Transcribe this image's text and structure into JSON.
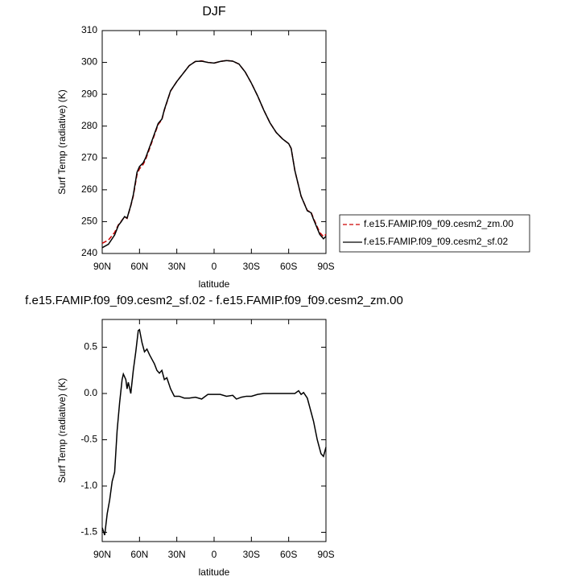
{
  "chart_data": [
    {
      "type": "line",
      "title": "DJF",
      "x_label": "latitude",
      "y_label": "Surf Temp (radiative) (K)",
      "x": [
        90,
        85,
        80,
        77,
        75,
        72,
        70,
        67,
        65,
        62,
        60,
        57,
        55,
        50,
        45,
        42,
        40,
        35,
        30,
        25,
        20,
        15,
        10,
        5,
        0,
        -5,
        -10,
        -15,
        -20,
        -25,
        -30,
        -35,
        -40,
        -45,
        -50,
        -55,
        -60,
        -62,
        -65,
        -70,
        -75,
        -78,
        -80,
        -85,
        -88,
        -90
      ],
      "series": [
        {
          "name": "f.e15.FAMIP.f09_f09.cesm2_zm.00",
          "color": "#cc0000",
          "dashed": true,
          "values": [
            243.2,
            244.2,
            246.6,
            249,
            250,
            251.5,
            251,
            255,
            258,
            264.8,
            266.6,
            268,
            269.6,
            275,
            280.5,
            282,
            285,
            291,
            294,
            296.5,
            299,
            300.3,
            300.5,
            300,
            299.8,
            300.3,
            300.6,
            300.4,
            299.5,
            297,
            293.5,
            289.5,
            285,
            281,
            278,
            276,
            274.5,
            273,
            266,
            258,
            253.5,
            253,
            251,
            246.6,
            245.3,
            246
          ]
        },
        {
          "name": "f.e15.FAMIP.f09_f09.cesm2_sf.02",
          "color": "#000000",
          "dashed": false,
          "values": [
            241.8,
            242.9,
            245.8,
            248.8,
            249.8,
            251.6,
            251.1,
            255.1,
            258.4,
            265.5,
            267.3,
            268.5,
            270.1,
            275.4,
            280.8,
            282.2,
            285.2,
            291.1,
            294,
            296.5,
            299,
            300.3,
            300.4,
            300,
            299.8,
            300.3,
            300.6,
            300.4,
            299.5,
            297,
            293.5,
            289.5,
            285,
            281,
            278,
            276,
            274.5,
            273,
            266,
            258,
            253.4,
            252.8,
            250.7,
            246,
            244.6,
            245.4
          ]
        }
      ],
      "xlim": [
        90,
        -90
      ],
      "xticks": [
        {
          "value": 90,
          "label": "90N"
        },
        {
          "value": 60,
          "label": "60N"
        },
        {
          "value": 30,
          "label": "30N"
        },
        0,
        {
          "value": -30,
          "label": "30S"
        },
        {
          "value": -60,
          "label": "60S"
        },
        {
          "value": -90,
          "label": "90S"
        }
      ],
      "ylim": [
        240,
        310
      ],
      "yticks": [
        240,
        250,
        260,
        270,
        280,
        290,
        300,
        310
      ],
      "legend": "right"
    },
    {
      "type": "line",
      "title": "f.e15.FAMIP.f09_f09.cesm2_sf.02 - f.e15.FAMIP.f09_f09.cesm2_zm.00",
      "x_label": "latitude",
      "y_label": "Surf Temp (radiative) (K)",
      "x": [
        90,
        88,
        86,
        84,
        82,
        80,
        78,
        76,
        74,
        73,
        71,
        70,
        69,
        67,
        65,
        63,
        61,
        60,
        58,
        56,
        54,
        52,
        50,
        48,
        46,
        44,
        42,
        40,
        38,
        35,
        32,
        28,
        24,
        20,
        15,
        10,
        5,
        0,
        -5,
        -10,
        -15,
        -18,
        -22,
        -26,
        -30,
        -35,
        -40,
        -50,
        -60,
        -65,
        -68,
        -70,
        -72,
        -75,
        -78,
        -80,
        -83,
        -86,
        -88,
        -90
      ],
      "values": [
        -1.45,
        -1.53,
        -1.3,
        -1.15,
        -0.95,
        -0.85,
        -0.4,
        -0.1,
        0.15,
        0.21,
        0.15,
        0.05,
        0.12,
        0.0,
        0.25,
        0.45,
        0.68,
        0.69,
        0.55,
        0.45,
        0.48,
        0.42,
        0.37,
        0.32,
        0.25,
        0.22,
        0.25,
        0.15,
        0.17,
        0.05,
        -0.03,
        -0.03,
        -0.05,
        -0.05,
        -0.04,
        -0.06,
        -0.01,
        -0.01,
        -0.01,
        -0.03,
        -0.02,
        -0.06,
        -0.04,
        -0.03,
        -0.03,
        -0.01,
        0.0,
        0.0,
        0.0,
        0.0,
        0.03,
        -0.01,
        0.01,
        -0.05,
        -0.2,
        -0.3,
        -0.5,
        -0.65,
        -0.68,
        -0.58
      ],
      "color": "#000000",
      "xlim": [
        90,
        -90
      ],
      "xticks": [
        {
          "value": 90,
          "label": "90N"
        },
        {
          "value": 60,
          "label": "60N"
        },
        {
          "value": 30,
          "label": "30N"
        },
        0,
        {
          "value": -30,
          "label": "30S"
        },
        {
          "value": -60,
          "label": "60S"
        },
        {
          "value": -90,
          "label": "90S"
        }
      ],
      "ylim": [
        -1.6,
        0.8
      ],
      "yticks": [
        -1.5,
        {
          "value": -1.0,
          "label": "-1.0"
        },
        -0.5,
        {
          "value": 0,
          "label": "0.0"
        },
        0.5
      ]
    }
  ]
}
